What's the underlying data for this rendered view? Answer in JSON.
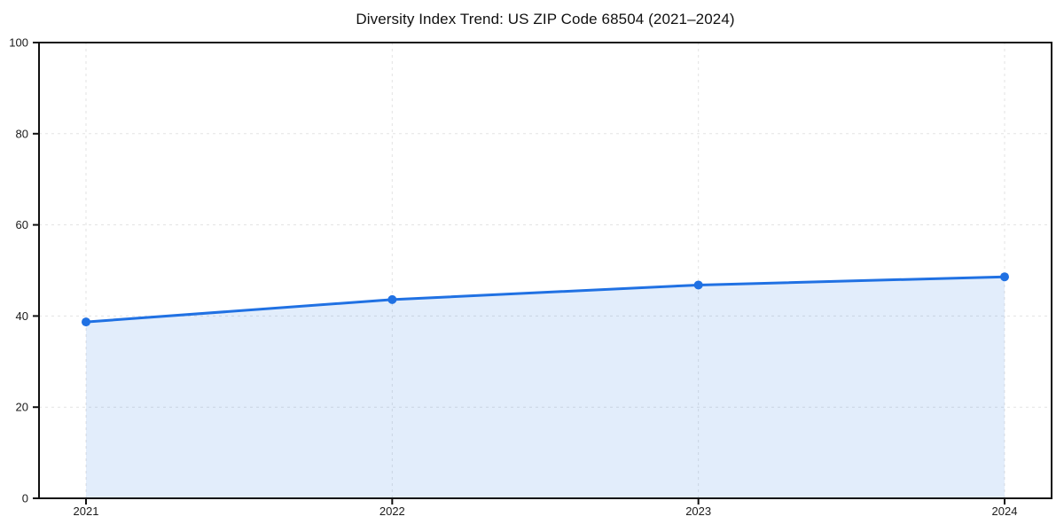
{
  "figure": {
    "background": "#ffffff"
  },
  "chart_data": {
    "type": "area",
    "title": "Diversity Index Trend: US ZIP Code 68504 (2021–2024)",
    "x": [
      "2021",
      "2022",
      "2023",
      "2024"
    ],
    "series": [
      {
        "name": "Diversity Index",
        "values": [
          38.7,
          43.6,
          46.8,
          48.6
        ]
      }
    ],
    "xlabel": "",
    "ylabel": "",
    "ylim": [
      0,
      100
    ],
    "yticks": [
      0,
      20,
      40,
      60,
      80,
      100
    ],
    "grid": true,
    "grid_style": "dashed",
    "legend_position": "none",
    "line_color": "#2071e3",
    "marker_color": "#2071e3",
    "fill_color": "#2071e3",
    "fill_opacity": 0.13,
    "axis_color": "#111111",
    "grid_color": "#e3e3e3",
    "tick_label_color": "#1a1a1a",
    "title_color": "#111111"
  }
}
